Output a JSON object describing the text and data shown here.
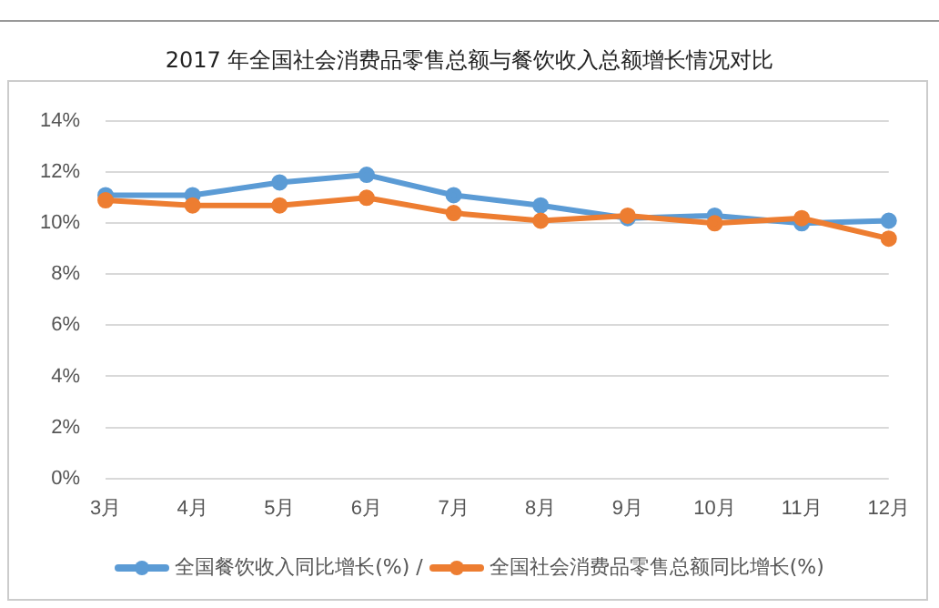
{
  "chart_data": {
    "type": "line",
    "title": "2017 年全国社会消费品零售总额与餐饮收入总额增长情况对比",
    "categories": [
      "3月",
      "4月",
      "5月",
      "6月",
      "7月",
      "8月",
      "9月",
      "10月",
      "11月",
      "12月"
    ],
    "series": [
      {
        "name": "全国餐饮收入同比增长(%)",
        "color": "#5b9bd5",
        "values": [
          11.1,
          11.1,
          11.6,
          11.9,
          11.1,
          10.7,
          10.2,
          10.3,
          10.0,
          10.1
        ]
      },
      {
        "name": "全国社会消费品零售总额同比增长(%)",
        "color": "#ed7d31",
        "values": [
          10.9,
          10.7,
          10.7,
          11.0,
          10.4,
          10.1,
          10.3,
          10.0,
          10.2,
          9.4
        ]
      }
    ],
    "ylim": [
      0,
      14
    ],
    "yticks": [
      {
        "value": 0,
        "label": "0%"
      },
      {
        "value": 2,
        "label": "2%"
      },
      {
        "value": 4,
        "label": "4%"
      },
      {
        "value": 6,
        "label": "6%"
      },
      {
        "value": 8,
        "label": "8%"
      },
      {
        "value": 10,
        "label": "10%"
      },
      {
        "value": 12,
        "label": "12%"
      },
      {
        "value": 14,
        "label": "14%"
      }
    ],
    "annotations": [
      "/"
    ],
    "grid": "y",
    "legend": "bottom",
    "marker": "circle",
    "line_style": "solid"
  }
}
